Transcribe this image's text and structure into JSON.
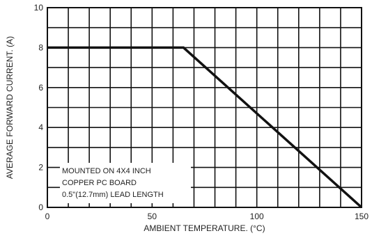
{
  "chart_data": {
    "type": "line",
    "xlabel": "AMBIENT TEMPERATURE. (°C)",
    "ylabel": "AVERAGE FORWARD CURRENT. (A)",
    "xlim": [
      0,
      150
    ],
    "ylim": [
      0,
      10
    ],
    "x_ticks": [
      0,
      50,
      100,
      150
    ],
    "y_ticks": [
      0,
      2,
      4,
      6,
      8,
      10
    ],
    "grid": true,
    "series": [
      {
        "x": [
          0,
          65,
          150
        ],
        "y": [
          8,
          8,
          0
        ]
      }
    ],
    "annotation": {
      "lines": [
        "MOUNTED ON 4X4 INCH",
        "COPPER PC BOARD",
        "0.5\"(12.7mm) LEAD LENGTH"
      ]
    }
  }
}
